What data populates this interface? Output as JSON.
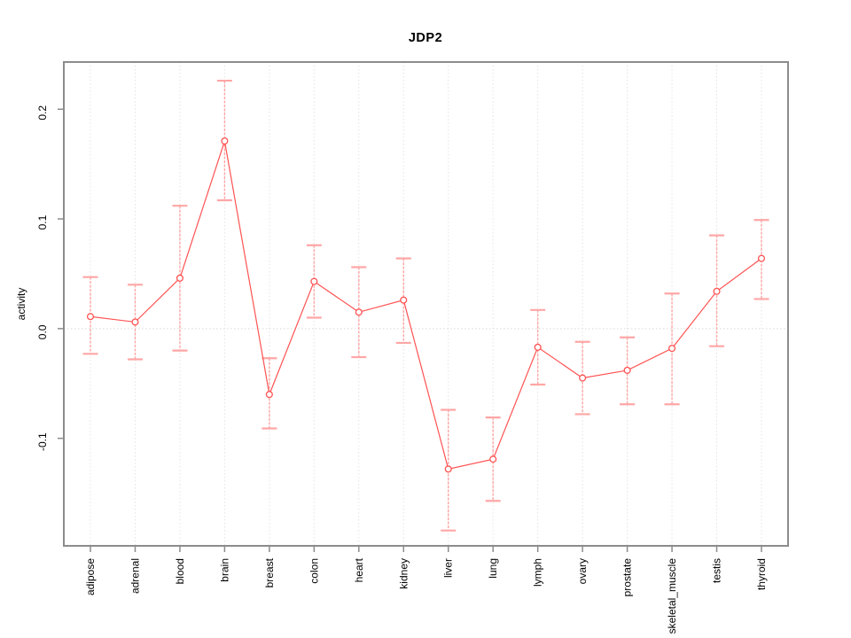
{
  "chart_data": {
    "type": "line",
    "title": "JDP2",
    "xlabel": "",
    "ylabel": "activity",
    "categories": [
      "adipose",
      "adrenal",
      "blood",
      "brain",
      "breast",
      "colon",
      "heart",
      "kidney",
      "liver",
      "lung",
      "lymph",
      "ovary",
      "prostate",
      "skeletal_muscle",
      "testis",
      "thyroid"
    ],
    "series": [
      {
        "name": "activity",
        "values": [
          0.011,
          0.006,
          0.046,
          0.171,
          -0.06,
          0.043,
          0.015,
          0.026,
          -0.128,
          -0.119,
          -0.017,
          -0.045,
          -0.038,
          -0.018,
          0.034,
          0.064
        ],
        "upper": [
          0.047,
          0.04,
          0.112,
          0.226,
          -0.027,
          0.076,
          0.056,
          0.064,
          -0.074,
          -0.081,
          0.017,
          -0.012,
          -0.008,
          0.032,
          0.085,
          0.099
        ],
        "lower": [
          -0.023,
          -0.028,
          -0.02,
          0.117,
          -0.091,
          0.01,
          -0.026,
          -0.013,
          -0.184,
          -0.157,
          -0.051,
          -0.078,
          -0.069,
          -0.069,
          -0.016,
          0.027
        ]
      }
    ],
    "ylim": [
      -0.198,
      0.243
    ],
    "yticks": [
      -0.1,
      0.0,
      0.1,
      0.2
    ],
    "ytick_labels": [
      "-0.1",
      "0.0",
      "0.1",
      "0.2"
    ],
    "grid": "vertical-dotted-per-category, dotted-zero-line",
    "legend_position": "none",
    "marker": "open-circle",
    "colors": {
      "series_line": "#ff5252",
      "error_bar": "#ffa6a6",
      "gridline": "#e4e4e4",
      "zero_line": "#d9d9d9",
      "plot_border": "#8c8c8c",
      "text": "#000000",
      "background": "#ffffff"
    }
  }
}
